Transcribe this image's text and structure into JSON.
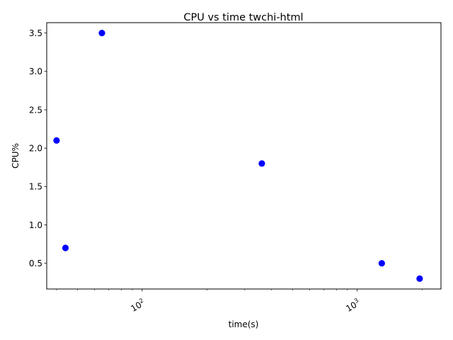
{
  "chart_data": {
    "type": "scatter",
    "title": "CPU vs time twchi-html",
    "xlabel": "time(s)",
    "ylabel": "CPU%",
    "xscale": "log",
    "xlim": [
      36,
      2450
    ],
    "ylim": [
      0.165,
      3.635
    ],
    "grid": false,
    "legend": "none",
    "marker_color": "#0000ff",
    "x_major_ticks": [
      {
        "value": 100,
        "label": "10",
        "exponent": "2"
      },
      {
        "value": 1000,
        "label": "10",
        "exponent": "3"
      }
    ],
    "x_minor_ticks": [
      40,
      50,
      60,
      70,
      80,
      90,
      200,
      300,
      400,
      500,
      600,
      700,
      800,
      900,
      2000
    ],
    "y_ticks": [
      {
        "value": 0.5,
        "label": "0.5"
      },
      {
        "value": 1.0,
        "label": "1.0"
      },
      {
        "value": 1.5,
        "label": "1.5"
      },
      {
        "value": 2.0,
        "label": "2.0"
      },
      {
        "value": 2.5,
        "label": "2.5"
      },
      {
        "value": 3.0,
        "label": "3.0"
      },
      {
        "value": 3.5,
        "label": "3.5"
      }
    ],
    "series": [
      {
        "points": [
          {
            "x": 40,
            "y": 2.1
          },
          {
            "x": 44,
            "y": 0.7
          },
          {
            "x": 65,
            "y": 3.5
          },
          {
            "x": 360,
            "y": 1.8
          },
          {
            "x": 1300,
            "y": 0.5
          },
          {
            "x": 1950,
            "y": 0.3
          }
        ]
      }
    ]
  }
}
